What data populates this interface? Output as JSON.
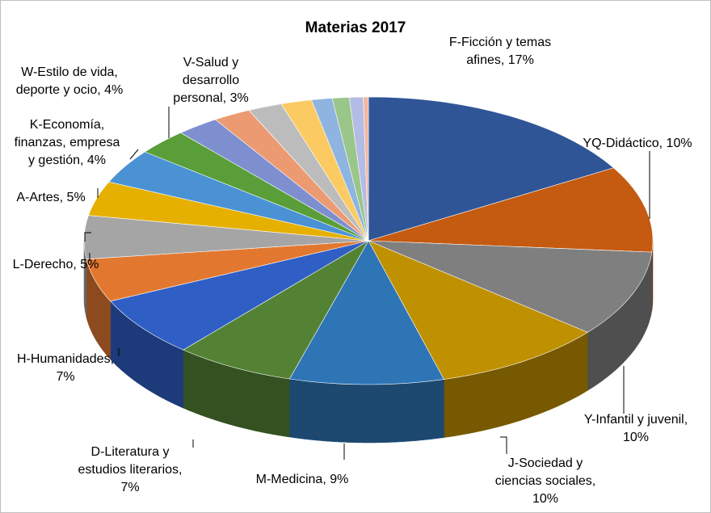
{
  "chart_data": {
    "type": "pie",
    "variant": "3d-pie",
    "title": "Materias 2017",
    "legend": "none",
    "slices": [
      {
        "label": "F-Ficción y temas afines, 17%",
        "lines": [
          "F-Ficción y temas",
          "afines, 17%"
        ],
        "value": 17,
        "color": "#2F5597"
      },
      {
        "label": "YQ-Didáctico, 10%",
        "lines": [
          "YQ-Didáctico, 10%"
        ],
        "value": 10,
        "color": "#C55A11"
      },
      {
        "label": "Y-Infantil y juvenil, 10%",
        "lines": [
          "Y-Infantil y juvenil,",
          "10%"
        ],
        "value": 10,
        "color": "#7F7F7F"
      },
      {
        "label": "J-Sociedad y ciencias sociales, 10%",
        "lines": [
          "J-Sociedad y",
          "ciencias sociales,",
          "10%"
        ],
        "value": 10,
        "color": "#BF9000"
      },
      {
        "label": "M-Medicina, 9%",
        "lines": [
          "M-Medicina, 9%"
        ],
        "value": 9,
        "color": "#2E75B6"
      },
      {
        "label": "D-Literatura y estudios literarios, 7%",
        "lines": [
          "D-Literatura y",
          "estudios literarios,",
          "7%"
        ],
        "value": 7,
        "color": "#548235"
      },
      {
        "label": "H-Humanidades, 7%",
        "lines": [
          "H-Humanidades,",
          "7%"
        ],
        "value": 7,
        "color": "#2F5FC4"
      },
      {
        "label": "L-Derecho, 5%",
        "lines": [
          "L-Derecho, 5%"
        ],
        "value": 5,
        "color": "#E27830"
      },
      {
        "label": "A-Artes, 5%",
        "lines": [
          "A-Artes, 5%"
        ],
        "value": 5,
        "color": "#A5A5A5"
      },
      {
        "label": "K-Economía, finanzas, empresa y gestión, 4%",
        "lines": [
          "K-Economía,",
          "finanzas, empresa",
          "y gestión, 4%"
        ],
        "value": 4,
        "color": "#E6B000"
      },
      {
        "label": "W-Estilo de vida, deporte y ocio, 4%",
        "lines": [
          "W-Estilo de vida,",
          "deporte y ocio, 4%"
        ],
        "value": 4,
        "color": "#4A92D4"
      },
      {
        "label": "V-Salud y desarrollo personal, 3%",
        "lines": [
          "V-Salud y",
          "desarrollo",
          "personal, 3%"
        ],
        "value": 3,
        "color": "#5A9E3A"
      },
      {
        "label": "",
        "lines": [],
        "value": 2.5,
        "color": "#7E8FD0"
      },
      {
        "label": "",
        "lines": [],
        "value": 2.2,
        "color": "#EB9A72"
      },
      {
        "label": "",
        "lines": [],
        "value": 2.0,
        "color": "#BCBCBC"
      },
      {
        "label": "",
        "lines": [],
        "value": 1.8,
        "color": "#FCCA62"
      },
      {
        "label": "",
        "lines": [],
        "value": 1.2,
        "color": "#8FB4E0"
      },
      {
        "label": "",
        "lines": [],
        "value": 1.0,
        "color": "#9BC68A"
      },
      {
        "label": "",
        "lines": [],
        "value": 0.8,
        "color": "#B3BCE4"
      },
      {
        "label": "",
        "lines": [],
        "value": 0.3,
        "color": "#F4B6A0"
      }
    ]
  }
}
